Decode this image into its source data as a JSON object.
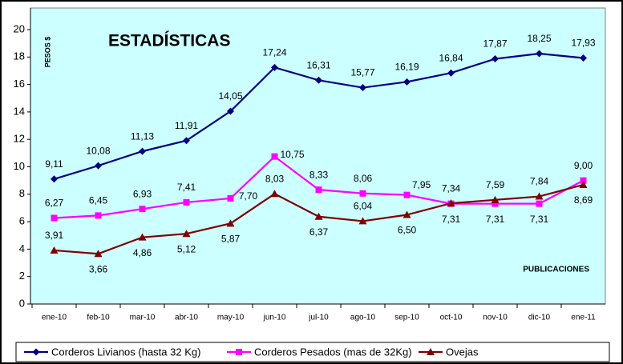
{
  "chart_data": {
    "type": "line",
    "title": "ESTADÍSTICAS",
    "y_label": "PESOS $",
    "annotation": "PUBLICACIONES",
    "categories": [
      "ene-10",
      "feb-10",
      "mar-10",
      "abr-10",
      "may-10",
      "jun-10",
      "jul-10",
      "ago-10",
      "sep-10",
      "oct-10",
      "nov-10",
      "dic-10",
      "ene-11"
    ],
    "series": [
      {
        "name": "Corderos Livianos (hasta 32 Kg)",
        "color": "#000080",
        "marker": "diamond",
        "values": [
          9.11,
          10.08,
          11.13,
          11.91,
          14.05,
          17.24,
          16.31,
          15.77,
          16.19,
          16.84,
          17.87,
          18.25,
          17.93
        ],
        "value_labels": [
          "9,11",
          "10,08",
          "11,13",
          "11,91",
          "14,05",
          "17,24",
          "16,31",
          "15,77",
          "16,19",
          "16,84",
          "17,87",
          "18,25",
          "17,93"
        ]
      },
      {
        "name": "Corderos Pesados (mas de 32Kg)",
        "color": "#ff00ff",
        "marker": "square",
        "values": [
          6.27,
          6.45,
          6.93,
          7.41,
          7.7,
          10.75,
          8.33,
          8.06,
          7.95,
          7.31,
          7.31,
          7.31,
          9.0
        ],
        "value_labels": [
          "6,27",
          "6,45",
          "6,93",
          "7,41",
          "7,70",
          "10,75",
          "8,33",
          "8,06",
          "7,95",
          "7,31",
          "7,31",
          "7,31",
          "9,00"
        ]
      },
      {
        "name": "Ovejas",
        "color": "#800000",
        "marker": "triangle",
        "values": [
          3.91,
          3.66,
          4.86,
          5.12,
          5.87,
          8.03,
          6.37,
          6.04,
          6.5,
          7.34,
          7.59,
          7.84,
          8.69
        ],
        "value_labels": [
          "3,91",
          "3,66",
          "4,86",
          "5,12",
          "5,87",
          "8,03",
          "6,37",
          "6,04",
          "6,50",
          "7,34",
          "7,59",
          "7,84",
          "8,69"
        ]
      }
    ],
    "ylim": [
      0,
      20
    ],
    "yticks": [
      0,
      2,
      4,
      6,
      8,
      10,
      12,
      14,
      16,
      18,
      20
    ],
    "grid": false
  }
}
